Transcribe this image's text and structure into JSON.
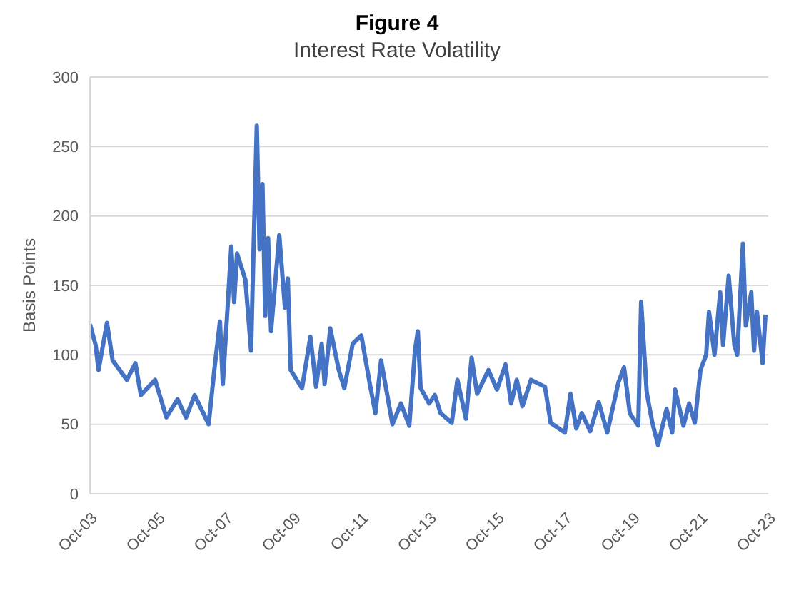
{
  "chart_data": {
    "type": "line",
    "title": "Figure 4",
    "subtitle": "Interest Rate Volatility",
    "ylabel": "Basis Points",
    "x": [
      "2003-10",
      "2003-12",
      "2004-01",
      "2004-04",
      "2004-06",
      "2004-11",
      "2005-02",
      "2005-04",
      "2005-09",
      "2006-01",
      "2006-05",
      "2006-08",
      "2006-11",
      "2007-04",
      "2007-06",
      "2007-08",
      "2007-09",
      "2007-11",
      "2007-12",
      "2008-01",
      "2008-02",
      "2008-05",
      "2008-07",
      "2008-08",
      "2008-09",
      "2008-10",
      "2008-11",
      "2008-12",
      "2009-01",
      "2009-02",
      "2009-05",
      "2009-07",
      "2009-08",
      "2009-09",
      "2010-01",
      "2010-04",
      "2010-06",
      "2010-08",
      "2010-09",
      "2010-11",
      "2011-02",
      "2011-04",
      "2011-07",
      "2011-10",
      "2012-01",
      "2012-03",
      "2012-05",
      "2012-09",
      "2012-12",
      "2013-03",
      "2013-05",
      "2013-06",
      "2013-07",
      "2013-10",
      "2013-12",
      "2014-02",
      "2014-06",
      "2014-08",
      "2014-11",
      "2015-01",
      "2015-03",
      "2015-07",
      "2015-10",
      "2016-01",
      "2016-03",
      "2016-05",
      "2016-07",
      "2016-10",
      "2017-03",
      "2017-05",
      "2017-10",
      "2017-12",
      "2018-02",
      "2018-04",
      "2018-07",
      "2018-10",
      "2019-01",
      "2019-05",
      "2019-07",
      "2019-09",
      "2019-12",
      "2020-01",
      "2020-03",
      "2020-05",
      "2020-07",
      "2020-10",
      "2020-12",
      "2021-01",
      "2021-04",
      "2021-06",
      "2021-08",
      "2021-10",
      "2021-12",
      "2022-01",
      "2022-03",
      "2022-05",
      "2022-06",
      "2022-08",
      "2022-10",
      "2022-11",
      "2023-01",
      "2023-02",
      "2023-04",
      "2023-05",
      "2023-06",
      "2023-08",
      "2023-09"
    ],
    "series": [
      {
        "color": "#4472c4",
        "values": [
          122,
          107,
          89,
          123,
          96,
          82,
          94,
          71,
          82,
          55,
          68,
          55,
          71,
          50,
          89,
          124,
          79,
          145,
          178,
          138,
          173,
          154,
          103,
          187,
          265,
          176,
          223,
          128,
          184,
          117,
          186,
          134,
          155,
          89,
          76,
          113,
          77,
          108,
          79,
          119,
          89,
          76,
          108,
          114,
          79,
          58,
          96,
          50,
          65,
          49,
          103,
          117,
          76,
          65,
          71,
          58,
          51,
          82,
          54,
          98,
          72,
          89,
          75,
          93,
          65,
          82,
          63,
          82,
          77,
          51,
          44,
          72,
          47,
          58,
          45,
          66,
          44,
          80,
          91,
          58,
          49,
          138,
          73,
          51,
          35,
          61,
          44,
          75,
          49,
          65,
          51,
          89,
          100,
          131,
          100,
          145,
          107,
          157,
          107,
          100,
          180,
          121,
          145,
          103,
          131,
          94,
          129
        ]
      }
    ],
    "xlim": [
      "2003-10",
      "2023-10"
    ],
    "xticks": [
      {
        "value": "2003-10",
        "label": "Oct-03"
      },
      {
        "value": "2005-10",
        "label": "Oct-05"
      },
      {
        "value": "2007-10",
        "label": "Oct-07"
      },
      {
        "value": "2009-10",
        "label": "Oct-09"
      },
      {
        "value": "2011-10",
        "label": "Oct-11"
      },
      {
        "value": "2013-10",
        "label": "Oct-13"
      },
      {
        "value": "2015-10",
        "label": "Oct-15"
      },
      {
        "value": "2017-10",
        "label": "Oct-17"
      },
      {
        "value": "2019-10",
        "label": "Oct-19"
      },
      {
        "value": "2021-10",
        "label": "Oct-21"
      },
      {
        "value": "2023-10",
        "label": "Oct-23"
      }
    ],
    "ylim": [
      0,
      300
    ],
    "yticks": [
      0,
      50,
      100,
      150,
      200,
      250,
      300
    ],
    "grid": "y"
  }
}
